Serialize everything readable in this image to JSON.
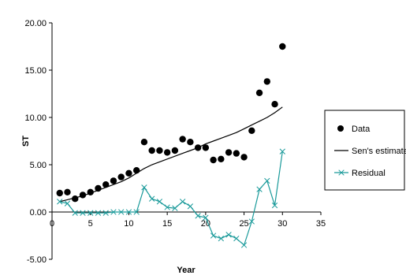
{
  "chart_data": {
    "type": "scatter",
    "xlabel": "Year",
    "ylabel": "ST",
    "xlim": [
      0,
      35
    ],
    "ylim": [
      -5,
      20
    ],
    "x_ticks": [
      0,
      5,
      10,
      15,
      20,
      25,
      30,
      35
    ],
    "y_ticks": [
      -5,
      0,
      5,
      10,
      15,
      20
    ],
    "x_tick_labels": [
      "0",
      "5",
      "10",
      "15",
      "20",
      "25",
      "30",
      "35"
    ],
    "y_tick_labels": [
      "-5.00",
      "0.00",
      "5.00",
      "10.00",
      "15.00",
      "20.00"
    ],
    "grid": false,
    "legend_position": "right",
    "series": [
      {
        "name": "Data",
        "kind": "marker",
        "color": "#000000",
        "x": [
          1,
          2,
          3,
          4,
          5,
          6,
          7,
          8,
          9,
          10,
          11,
          12,
          13,
          14,
          15,
          16,
          17,
          18,
          19,
          20,
          21,
          22,
          23,
          24,
          25,
          26,
          27,
          28,
          29,
          30
        ],
        "y": [
          2.0,
          2.1,
          1.4,
          1.8,
          2.1,
          2.5,
          2.9,
          3.3,
          3.7,
          4.1,
          4.4,
          7.4,
          6.5,
          6.5,
          6.3,
          6.5,
          7.7,
          7.4,
          6.8,
          6.8,
          5.5,
          5.6,
          6.3,
          6.2,
          5.8,
          8.6,
          12.6,
          13.8,
          11.4,
          17.5
        ]
      },
      {
        "name": "Sen's estimate",
        "kind": "line",
        "color": "#000000",
        "x": [
          1,
          2,
          3,
          4,
          5,
          6,
          7,
          8,
          9,
          10,
          11,
          12,
          13,
          14,
          15,
          16,
          17,
          18,
          19,
          20,
          21,
          22,
          23,
          24,
          25,
          26,
          27,
          28,
          29,
          30
        ],
        "y": [
          1.1,
          1.3,
          1.5,
          1.7,
          2.0,
          2.3,
          2.6,
          2.9,
          3.2,
          3.6,
          4.1,
          4.6,
          5.0,
          5.3,
          5.6,
          5.9,
          6.2,
          6.5,
          6.8,
          7.2,
          7.5,
          7.8,
          8.1,
          8.4,
          8.8,
          9.2,
          9.6,
          10.0,
          10.5,
          11.1
        ]
      },
      {
        "name": "Residual",
        "kind": "line-x-marker",
        "color": "#1a9a9a",
        "x": [
          1,
          2,
          3,
          4,
          5,
          6,
          7,
          8,
          9,
          10,
          11,
          12,
          13,
          14,
          15,
          16,
          17,
          18,
          19,
          20,
          21,
          22,
          23,
          24,
          25,
          26,
          27,
          28,
          29,
          30
        ],
        "y": [
          1.1,
          0.9,
          -0.1,
          -0.1,
          -0.1,
          -0.1,
          -0.1,
          0.0,
          0.0,
          0.0,
          0.0,
          2.6,
          1.4,
          1.1,
          0.5,
          0.4,
          1.1,
          0.6,
          -0.4,
          -0.6,
          -2.5,
          -2.8,
          -2.4,
          -2.8,
          -3.5,
          -1.0,
          2.4,
          3.3,
          0.7,
          6.4
        ]
      }
    ]
  }
}
